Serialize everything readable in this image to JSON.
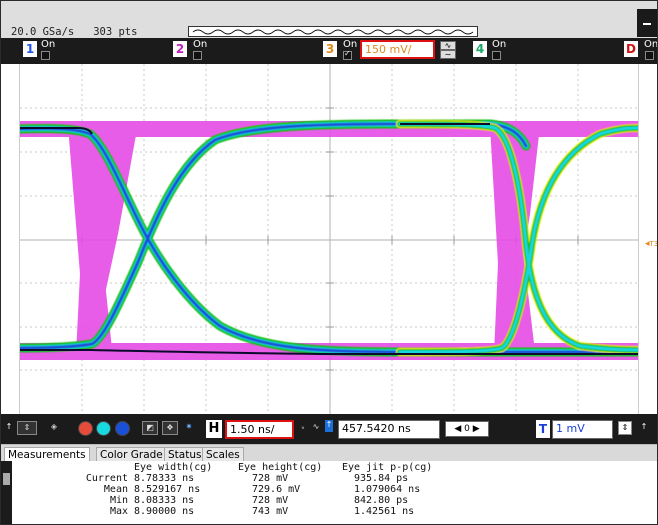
{
  "acquisition": {
    "sample_rate": "20.0 GSa/s",
    "points": "303 pts"
  },
  "channels": [
    {
      "number": "1",
      "state": "On",
      "color": "#2255ee",
      "checked": false
    },
    {
      "number": "2",
      "state": "On",
      "color": "#c020c0",
      "checked": false
    },
    {
      "number": "3",
      "state": "On",
      "color": "#e08a1e",
      "checked": true,
      "scale": "150 mV/"
    },
    {
      "number": "4",
      "state": "On",
      "color": "#18a868",
      "checked": false
    },
    {
      "number": "D",
      "state": "On",
      "color": "#d11111",
      "checked": false
    }
  ],
  "trigger_marker": "T3",
  "control": {
    "horizontal_label": "H",
    "horizontal_scale": "1.50 ns/",
    "position": "457.5420 ns",
    "trigger_label": "T",
    "trigger_level": "1 mV",
    "nav_value": "0"
  },
  "tabs": [
    "Measurements",
    "Color Grade",
    "Status",
    "Scales"
  ],
  "active_tab": "Measurements",
  "measurements": {
    "headers": [
      "Eye width(cg)",
      "Eye height(cg)",
      "Eye jit p-p(cg)"
    ],
    "rows": [
      {
        "label": "Current",
        "values": [
          "8.78333 ns",
          "728 mV",
          "935.84 ps"
        ]
      },
      {
        "label": "Mean",
        "values": [
          "8.529167 ns",
          "729.6 mV",
          "1.079064 ns"
        ]
      },
      {
        "label": "Min",
        "values": [
          "8.08333 ns",
          "728 mV",
          "842.80 ps"
        ]
      },
      {
        "label": "Max",
        "values": [
          "8.90000 ns",
          "743 mV",
          "1.42561 ns"
        ]
      }
    ]
  },
  "colors": {
    "grade_magenta": "#e64ce6",
    "grade_yellow": "#f2f21a",
    "grade_green": "#18c018",
    "grade_cyan": "#18d8e0",
    "grade_blue": "#1a4fd8",
    "grade_core": "#0a0a2a",
    "highlight_border": "#dd1111"
  }
}
